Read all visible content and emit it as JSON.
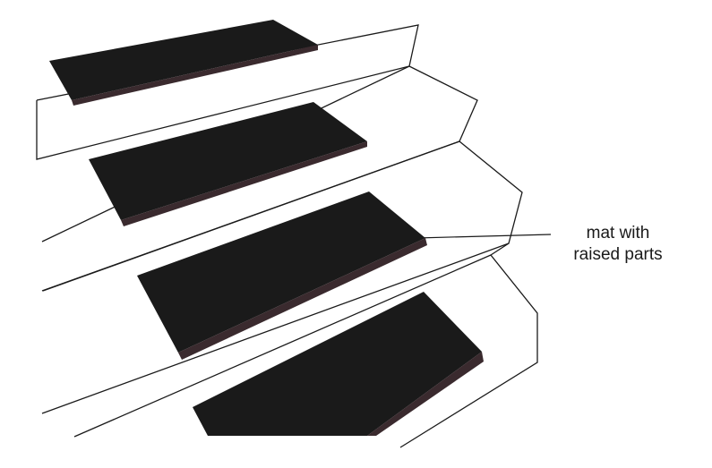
{
  "diagram": {
    "colors": {
      "background": "#ffffff",
      "line": "#1a1a1a",
      "mat": "#1a1a1a",
      "mat_edge": "#3a2a2e"
    },
    "callout": {
      "line1": "mat with",
      "line2": "raised parts"
    }
  }
}
